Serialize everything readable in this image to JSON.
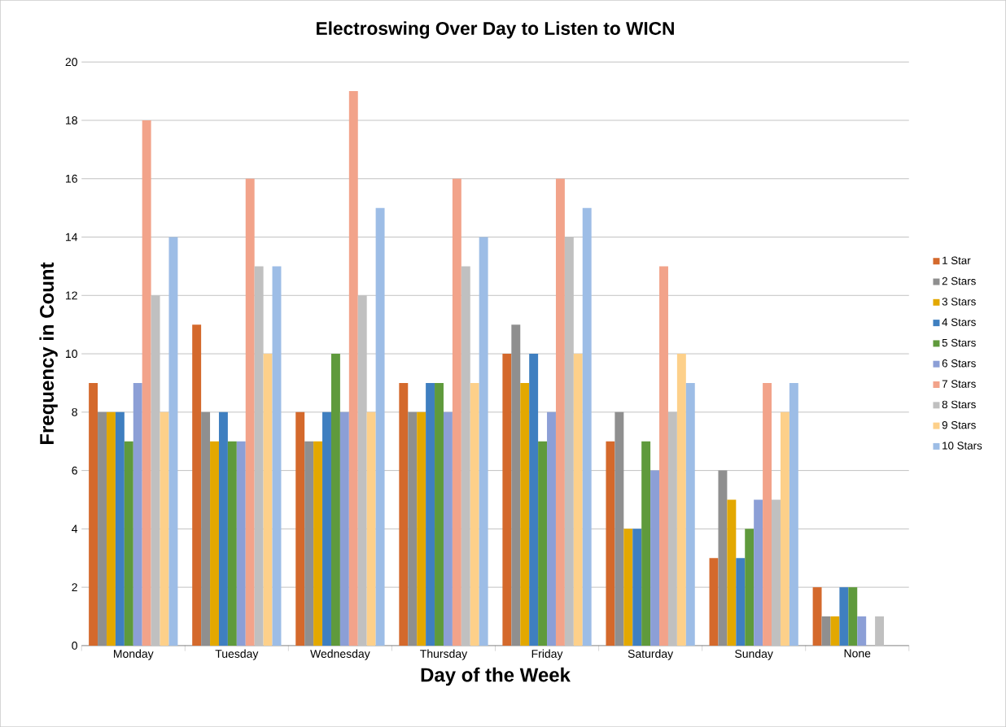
{
  "chart_data": {
    "type": "bar",
    "title": "Electroswing Over Day to Listen to WICN",
    "xlabel": "Day of the Week",
    "ylabel": "Frequency in Count",
    "categories": [
      "Monday",
      "Tuesday",
      "Wednesday",
      "Thursday",
      "Friday",
      "Saturday",
      "Sunday",
      "None"
    ],
    "series": [
      {
        "name": "1 Star",
        "color": "#d4692c",
        "values": [
          9,
          11,
          8,
          9,
          10,
          7,
          3,
          2
        ]
      },
      {
        "name": "2 Stars",
        "color": "#8f8f8f",
        "values": [
          8,
          8,
          7,
          8,
          11,
          8,
          6,
          1
        ]
      },
      {
        "name": "3 Stars",
        "color": "#e3a800",
        "values": [
          8,
          7,
          7,
          8,
          9,
          4,
          5,
          1
        ]
      },
      {
        "name": "4 Stars",
        "color": "#3f7fc0",
        "values": [
          8,
          8,
          8,
          9,
          10,
          4,
          3,
          2
        ]
      },
      {
        "name": "5 Stars",
        "color": "#5f9a3c",
        "values": [
          7,
          7,
          10,
          9,
          7,
          7,
          4,
          2
        ]
      },
      {
        "name": "6 Stars",
        "color": "#8c9fd6",
        "values": [
          9,
          7,
          8,
          8,
          8,
          6,
          5,
          1
        ]
      },
      {
        "name": "7 Stars",
        "color": "#f2a38a",
        "values": [
          18,
          16,
          19,
          16,
          16,
          13,
          9,
          0
        ]
      },
      {
        "name": "8 Stars",
        "color": "#c0c0c0",
        "values": [
          12,
          13,
          12,
          13,
          14,
          8,
          5,
          1
        ]
      },
      {
        "name": "9 Stars",
        "color": "#fdd08a",
        "values": [
          8,
          10,
          8,
          9,
          10,
          10,
          8,
          0
        ]
      },
      {
        "name": "10 Stars",
        "color": "#9dbde6",
        "values": [
          14,
          13,
          15,
          14,
          15,
          9,
          9,
          0
        ]
      }
    ],
    "ylim": [
      0,
      20
    ],
    "yticks": [
      0,
      2,
      4,
      6,
      8,
      10,
      12,
      14,
      16,
      18,
      20
    ],
    "grid": "y",
    "legend": "right"
  }
}
